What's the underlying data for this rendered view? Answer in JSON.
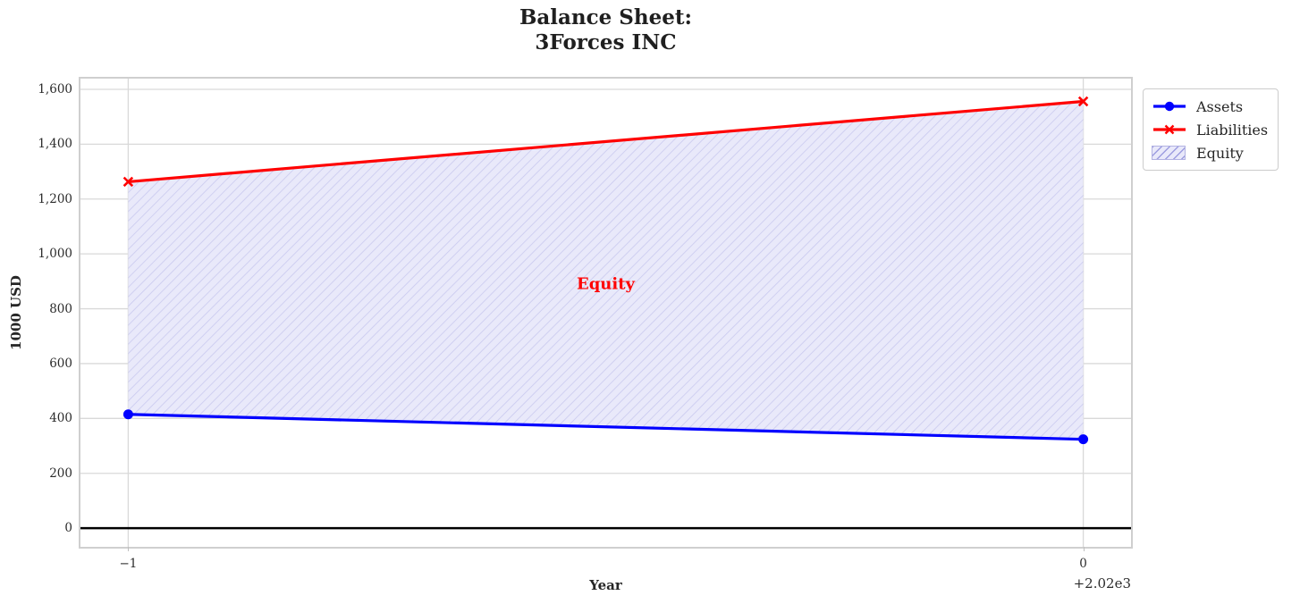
{
  "chart_data": {
    "type": "line",
    "title": "Balance Sheet:\n3Forces INC",
    "xlabel": "Year",
    "ylabel": "1000 USD",
    "x_years": [
      2019,
      2020
    ],
    "x_display": [
      -1,
      0
    ],
    "xtick_labels": [
      "−1",
      "0"
    ],
    "x_offset_text": "+2.02e3",
    "yticks": [
      0,
      200,
      400,
      600,
      800,
      1000,
      1200,
      1400,
      1600
    ],
    "ytick_labels": [
      "0",
      "200",
      "400",
      "600",
      "800",
      "1,000",
      "1,200",
      "1,400",
      "1,600"
    ],
    "xlim": [
      -1.05,
      0.05
    ],
    "ylim": [
      -68,
      1639
    ],
    "grid": true,
    "legend_position": "upper right outside",
    "series": [
      {
        "name": "Assets",
        "color": "#0000ff",
        "marker": "circle",
        "values": [
          415,
          324
        ]
      },
      {
        "name": "Liabilities",
        "color": "#ff0000",
        "marker": "x",
        "values": [
          1263,
          1556
        ]
      }
    ],
    "area": {
      "name": "Equity",
      "between": [
        "Assets",
        "Liabilities"
      ],
      "fill_color": "#e9e9fa",
      "hatch": "/",
      "hatch_color": "#c9c9ef",
      "label_text": "Equity",
      "label_color": "#ff0000",
      "label_pos": [
        -0.5,
        890
      ]
    },
    "zero_line": {
      "value": 0,
      "color": "#000000"
    },
    "colors": {
      "grid": "#d9d9d9",
      "spine": "#cfcfcf",
      "text": "#262626"
    }
  }
}
